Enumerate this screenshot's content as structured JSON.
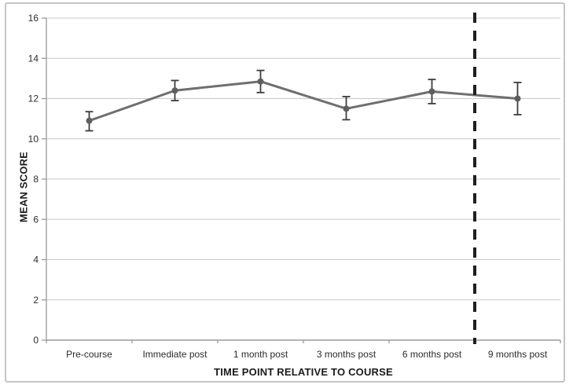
{
  "colors": {
    "background": "#ffffff",
    "border": "#c5c5c5",
    "gridline": "#c9c9c9",
    "axis_line": "#9a9a9a",
    "tick_label": "#2b2b2b",
    "axis_title": "#1a1a1a",
    "series_line": "#6f6f6f",
    "marker": "#5e5e5e",
    "error_bar": "#3d3d3d",
    "dashed_line": "#1f1f1f"
  },
  "chart_data": {
    "type": "line",
    "title": "",
    "xlabel": "TIME POINT RELATIVE TO COURSE",
    "ylabel": "MEAN SCORE",
    "categories": [
      "Pre-course",
      "Immediate post",
      "1 month post",
      "3 months post",
      "6 months post",
      "9 months post"
    ],
    "series": [
      {
        "name": "Mean score",
        "values": [
          10.9,
          12.4,
          12.85,
          11.5,
          12.35,
          12.0
        ],
        "error_up": [
          0.45,
          0.5,
          0.55,
          0.6,
          0.6,
          0.8
        ],
        "error_down": [
          0.5,
          0.5,
          0.55,
          0.55,
          0.6,
          0.8
        ]
      }
    ],
    "ylim": [
      0,
      16
    ],
    "ytick_step": 2,
    "grid": true,
    "legend_position": "none",
    "marker": "circle",
    "annotations": [
      {
        "type": "vline_dashed",
        "between_categories": [
          4,
          5
        ]
      }
    ]
  }
}
